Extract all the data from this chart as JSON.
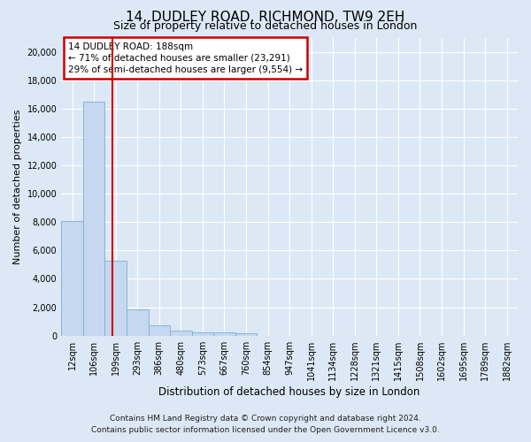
{
  "title": "14, DUDLEY ROAD, RICHMOND, TW9 2EH",
  "subtitle": "Size of property relative to detached houses in London",
  "xlabel": "Distribution of detached houses by size in London",
  "ylabel": "Number of detached properties",
  "footer_line1": "Contains HM Land Registry data © Crown copyright and database right 2024.",
  "footer_line2": "Contains public sector information licensed under the Open Government Licence v3.0.",
  "bar_color": "#c5d8ef",
  "bar_edge_color": "#7aaed4",
  "background_color": "#dce8f5",
  "fig_background_color": "#dce8f5",
  "grid_color": "#ffffff",
  "vline_color": "#cc0000",
  "annotation_box_edge_color": "#cc0000",
  "categories": [
    "12sqm",
    "106sqm",
    "199sqm",
    "293sqm",
    "386sqm",
    "480sqm",
    "573sqm",
    "667sqm",
    "760sqm",
    "854sqm",
    "947sqm",
    "1041sqm",
    "1134sqm",
    "1228sqm",
    "1321sqm",
    "1415sqm",
    "1508sqm",
    "1602sqm",
    "1695sqm",
    "1789sqm",
    "1882sqm"
  ],
  "values": [
    8050,
    16500,
    5300,
    1850,
    750,
    360,
    250,
    210,
    195,
    0,
    0,
    0,
    0,
    0,
    0,
    0,
    0,
    0,
    0,
    0,
    0
  ],
  "ylim": [
    0,
    21000
  ],
  "yticks": [
    0,
    2000,
    4000,
    6000,
    8000,
    10000,
    12000,
    14000,
    16000,
    18000,
    20000
  ],
  "vline_index": 1.87,
  "annotation_title": "14 DUDLEY ROAD: 188sqm",
  "annotation_line2": "← 71% of detached houses are smaller (23,291)",
  "annotation_line3": "29% of semi-detached houses are larger (9,554) →",
  "title_fontsize": 11,
  "subtitle_fontsize": 9,
  "ylabel_fontsize": 8,
  "xlabel_fontsize": 8.5,
  "tick_fontsize": 7,
  "annotation_fontsize": 7.5,
  "footer_fontsize": 6.5
}
